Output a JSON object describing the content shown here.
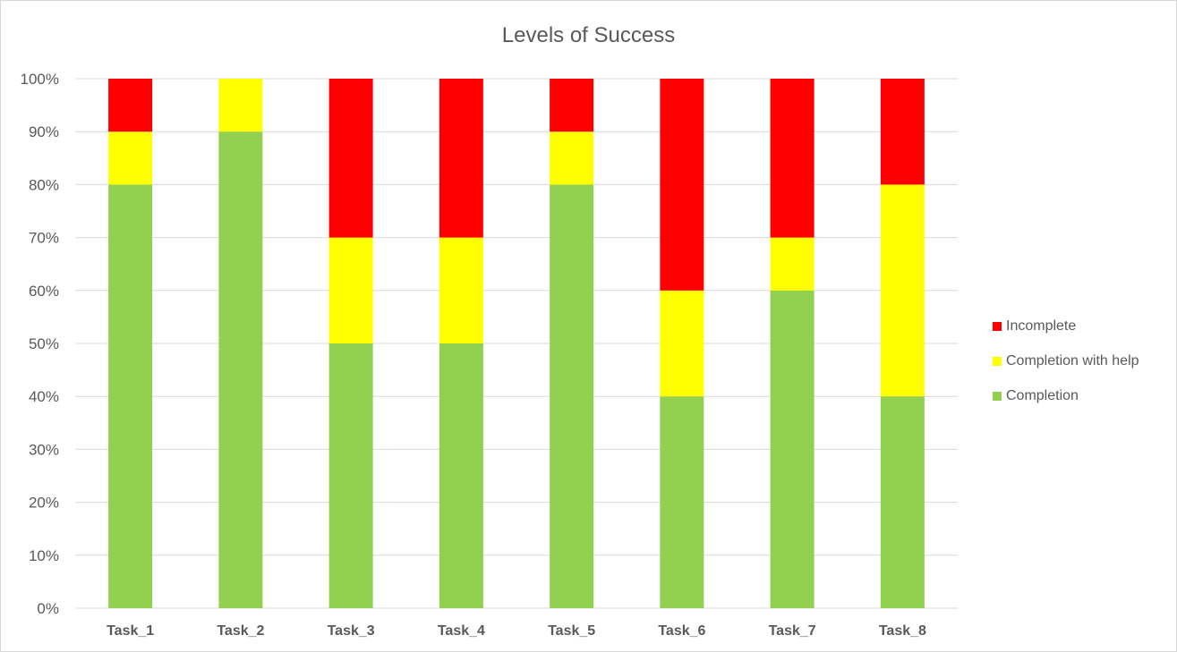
{
  "chart_data": {
    "type": "bar",
    "stacked": true,
    "title": "Levels of Success",
    "xlabel": "",
    "ylabel": "",
    "categories": [
      "Task_1",
      "Task_2",
      "Task_3",
      "Task_4",
      "Task_5",
      "Task_6",
      "Task_7",
      "Task_8"
    ],
    "series": [
      {
        "name": "Completion",
        "color": "#92d050",
        "values": [
          80,
          90,
          50,
          50,
          80,
          40,
          60,
          40
        ]
      },
      {
        "name": "Completion with help",
        "color": "#ffff00",
        "values": [
          10,
          10,
          20,
          20,
          10,
          20,
          10,
          40
        ]
      },
      {
        "name": "Incomplete",
        "color": "#ff0000",
        "values": [
          10,
          0,
          30,
          30,
          10,
          40,
          30,
          20
        ]
      }
    ],
    "ylim": [
      0,
      100
    ],
    "yticks": [
      "0%",
      "10%",
      "20%",
      "30%",
      "40%",
      "50%",
      "60%",
      "70%",
      "80%",
      "90%",
      "100%"
    ],
    "grid": true,
    "legend_position": "right"
  }
}
